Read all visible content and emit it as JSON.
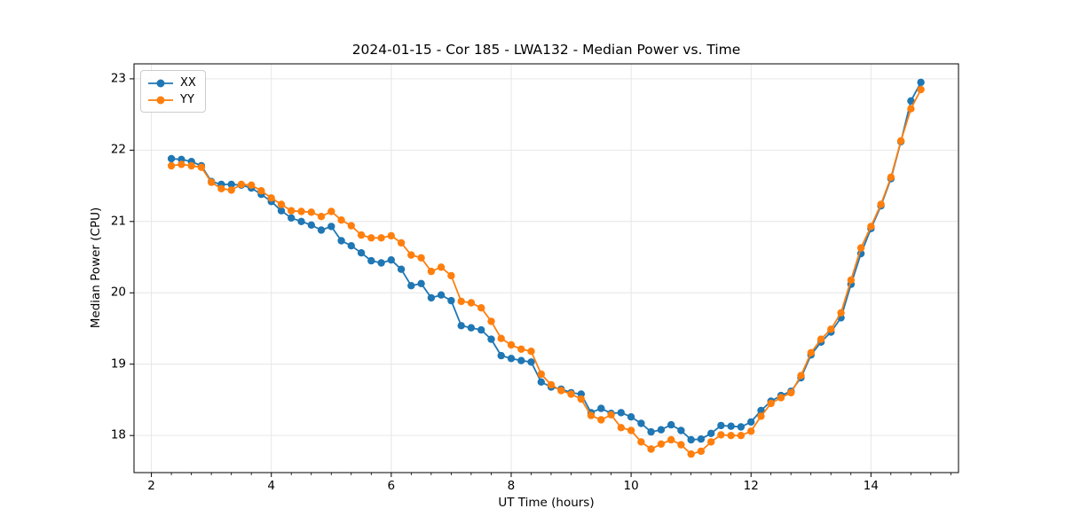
{
  "chart_data": {
    "type": "line",
    "title": "2024-01-15 - Cor 185 - LWA132 - Median Power vs. Time",
    "xlabel": "UT Time (hours)",
    "ylabel": "Median Power (CPU)",
    "xlim": [
      1.71,
      15.46
    ],
    "ylim": [
      17.48,
      23.21
    ],
    "x_ticks": [
      2,
      4,
      6,
      8,
      10,
      12,
      14
    ],
    "y_ticks": [
      18,
      19,
      20,
      21,
      22,
      23
    ],
    "x_minor_step": 0.3333,
    "grid": true,
    "legend_position": "upper-left",
    "x": [
      2.333,
      2.5,
      2.667,
      2.833,
      3,
      3.167,
      3.333,
      3.5,
      3.667,
      3.833,
      4,
      4.167,
      4.333,
      4.5,
      4.667,
      4.833,
      5,
      5.167,
      5.333,
      5.5,
      5.667,
      5.833,
      6,
      6.167,
      6.333,
      6.5,
      6.667,
      6.833,
      7,
      7.167,
      7.333,
      7.5,
      7.667,
      7.833,
      8,
      8.167,
      8.333,
      8.5,
      8.667,
      8.833,
      9,
      9.167,
      9.333,
      9.5,
      9.667,
      9.833,
      10,
      10.167,
      10.333,
      10.5,
      10.667,
      10.833,
      11,
      11.167,
      11.333,
      11.5,
      11.667,
      11.833,
      12,
      12.167,
      12.333,
      12.5,
      12.667,
      12.833,
      13,
      13.167,
      13.333,
      13.5,
      13.667,
      13.833,
      14,
      14.167,
      14.333,
      14.5,
      14.667,
      14.833
    ],
    "series": [
      {
        "name": "XX",
        "color": "#1f77b4",
        "marker": "circle",
        "values": [
          21.88,
          21.87,
          21.84,
          21.78,
          21.56,
          21.52,
          21.52,
          21.51,
          21.47,
          21.38,
          21.28,
          21.15,
          21.05,
          21.0,
          20.95,
          20.88,
          20.93,
          20.73,
          20.66,
          20.56,
          20.45,
          20.42,
          20.46,
          20.33,
          20.1,
          20.13,
          19.93,
          19.97,
          19.89,
          19.54,
          19.51,
          19.48,
          19.35,
          19.12,
          19.08,
          19.05,
          19.03,
          18.75,
          18.68,
          18.65,
          18.6,
          18.58,
          18.32,
          18.38,
          18.31,
          18.32,
          18.26,
          18.17,
          18.05,
          18.08,
          18.15,
          18.07,
          17.94,
          17.95,
          18.03,
          18.14,
          18.13,
          18.12,
          18.19,
          18.35,
          18.48,
          18.56,
          18.62,
          18.81,
          19.13,
          19.31,
          19.45,
          19.65,
          20.12,
          20.55,
          20.9,
          21.22,
          21.6,
          22.12,
          22.69,
          22.95
        ]
      },
      {
        "name": "YY",
        "color": "#ff7f0e",
        "marker": "circle",
        "values": [
          21.78,
          21.8,
          21.78,
          21.76,
          21.55,
          21.46,
          21.44,
          21.52,
          21.51,
          21.43,
          21.33,
          21.24,
          21.15,
          21.14,
          21.13,
          21.07,
          21.14,
          21.02,
          20.94,
          20.81,
          20.77,
          20.77,
          20.8,
          20.7,
          20.53,
          20.49,
          20.3,
          20.36,
          20.24,
          19.88,
          19.86,
          19.79,
          19.6,
          19.36,
          19.27,
          19.21,
          19.18,
          18.86,
          18.71,
          18.63,
          18.58,
          18.51,
          18.28,
          18.22,
          18.29,
          18.11,
          18.07,
          17.91,
          17.81,
          17.88,
          17.94,
          17.87,
          17.74,
          17.78,
          17.91,
          18.01,
          18.0,
          18.0,
          18.06,
          18.27,
          18.45,
          18.53,
          18.6,
          18.84,
          19.16,
          19.35,
          19.49,
          19.72,
          20.18,
          20.63,
          20.93,
          21.24,
          21.62,
          22.13,
          22.58,
          22.85
        ]
      }
    ]
  },
  "colors": {
    "background": "#ffffff",
    "grid": "#e6e6e6",
    "spine": "#000000",
    "text": "#000000",
    "legend_border": "#cccccc",
    "series_xx": "#1f77b4",
    "series_yy": "#ff7f0e"
  }
}
